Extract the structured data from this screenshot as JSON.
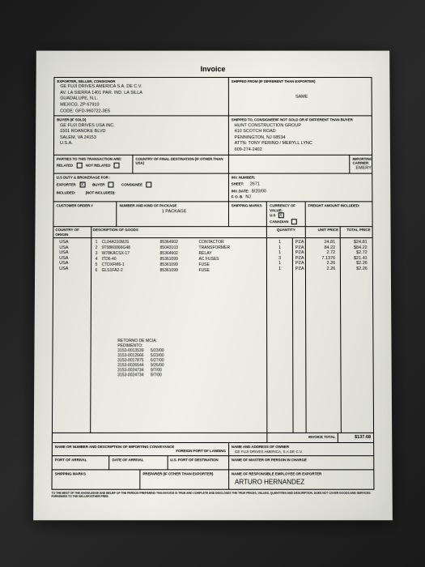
{
  "title": "Invoice",
  "labels": {
    "exporter": "EXPORTER, SELLER, CONSIGNOR",
    "shipped_from": "SHIPPED FROM (IF DIFFERENT THAN EXPORTER)",
    "buyer": "BUYER (IF SOLD)",
    "shipped_to": "SHIPPED TO, CONSIGNEE/IF NOT SOLD OR IF DIFFERENT THAN BUYER",
    "related": "RELATED",
    "not_related": "NOT RELATED",
    "parties": "PARTIES TO THIS TRANSACTION ARE:",
    "country_dest": "COUNTRY OF FINAL DESTINATION (IF OTHER THAN USA)",
    "importing_carrier": "IMPORTING CARRIER",
    "duty": "U.S DUTY & BROKERAGE FOR :",
    "exporter2": "EXPORTER",
    "buyer2": "BUYER",
    "consignee": "CONSIGNEE",
    "included": "INCLUDED:",
    "not_included": "(NOT INCLUDED):",
    "inv_number": "INV. NUMBER:",
    "sheet": "SHEET:",
    "inv_date": "INV. DATE:",
    "fob": "F. O. B.",
    "currency": "CURRENCY OF VALUE:",
    "us": "U.S",
    "canadian": "CANADIAN",
    "freight": "FREIGHT AMOUNT INCLUDED:",
    "cust_order": "CUSTOMER ORDER #",
    "num_kind": "NUMBER AND KIND OF PACKAGE",
    "shipping_marks": "SHIPPING MARKS",
    "country_origin": "COUNTRY OF ORIGIN",
    "desc_goods": "DESCRIPTION OF GOODS",
    "qty": "QUANTITY",
    "unit_price": "UNIT PRICE",
    "total_price": "TOTAL PRICE",
    "retorno": "RETORNO DE MCIA:",
    "pedimento": "PEDIMENTO:",
    "invoice_total": "INVOICE TOTAL",
    "name_import": "NAME OR NUMBER AND DESCRIPTION OF IMPORTING CONVEYANCE",
    "foreign_port": "FOREIGN PORT OF LANDING",
    "name_owner": "NAME AND ADDRESS OF OWNER",
    "port_arrival": "PORT OF ARRIVAL",
    "date_arrival": "DATE OF ARRIVAL",
    "us_port": "U.S. PORT OF DESTINATION",
    "master": "NAME OF MASTER OR PERSON IN CHARGE",
    "ship_marks2": "SHIPPING MARKS",
    "preparer": "PREPARER (IF OTHER THAN EXPORTER)",
    "responsible": "NAME OF RESPONSIBLE EMPLOYEE OR EXPORTER",
    "footer": "TO THE BEST OF THE KNOWLEDGE AND BELIEF OF THE PERSON PREPARING THIS INVOICE IS TRUE AND COMPLETE AND DISCLOSES THE TRUE PRICES, VALUES, QUANTITIES AND DESCRIPTION. DOES NOT COVER GOODS AND SERVICES FURNISHED TO THE SELLER EITHER FREE."
  },
  "exporter": {
    "l1": "GE FUJI DRIVES AMERICA S.A. DE C.V.",
    "l2": "AV. LA SIERRA 1401 PAR. IND. LA SILLA",
    "l3": "GUADALUPE, N.L.",
    "l4": "MEXICO, ZP 67910",
    "l5": "CODE: GFD-960722-3E5"
  },
  "shipped_from": "SAME",
  "buyer": {
    "l1": "GE FUJI DRIVES USA INC.",
    "l2": "1501 ROANOKE BLVD",
    "l3": "SALEM, VA 24153",
    "l4": "U.S.A."
  },
  "shipped_to": {
    "l1": "HUNT CONSTRUCTION GROUP",
    "l2": "410 SCOTCH ROAD",
    "l3": "PENNINGTON, NJ 08534",
    "l4": "ATTN: TONY PERINO / MERYLL LYNC",
    "l5": "609-274-2402"
  },
  "carrier": "EMERY",
  "sheet": "2671",
  "inv_date": "8/20/00",
  "fob": "NJ",
  "num_kind_val": "1 PACKAGE",
  "currency_x": "X",
  "exporter_x": "X",
  "items": [
    {
      "co": "USA",
      "n": "1",
      "pn": "CL04A310MJS",
      "hs": "85364902",
      "d": "CONTACTOR",
      "q": "1",
      "u": "PZA",
      "up": "24.81",
      "tp": "$24.81"
    },
    {
      "co": "USA",
      "n": "2",
      "pn": "9T58K0066G48",
      "hs": "85043103",
      "d": "TRANSFORMER",
      "q": "1",
      "u": "PZA",
      "up": "84.22",
      "tp": "$84.22"
    },
    {
      "co": "USA",
      "n": "3",
      "pn": "W78KACSX-17",
      "hs": "85364902",
      "d": "RELAY",
      "q": "1",
      "u": "PZA",
      "up": "2.72",
      "tp": "$2.72"
    },
    {
      "co": "USA",
      "n": "4",
      "pn": "ITD6-40",
      "hs": "85361099",
      "d": "AC FUSES",
      "q": "3",
      "u": "PZA",
      "up": "7.1376",
      "tp": "$21.41"
    },
    {
      "co": "USA",
      "n": "5",
      "pn": "CTDXFM6-1",
      "hs": "85361099",
      "d": "FUSE",
      "q": "1",
      "u": "PZA",
      "up": "2.26",
      "tp": "$2.26"
    },
    {
      "co": "USA",
      "n": "6",
      "pn": "GLS1FA2-2",
      "hs": "85361099",
      "d": "FUSE",
      "q": "1",
      "u": "PZA",
      "up": "2.26",
      "tp": "$2.26"
    }
  ],
  "pedimentos": [
    {
      "n": "3153-0013539",
      "d": "5/23/00"
    },
    {
      "n": "3153-0012666",
      "d": "5/23/00"
    },
    {
      "n": "3153-0017875",
      "d": "6/27/00"
    },
    {
      "n": "3153-0026544",
      "d": "9/26/00"
    },
    {
      "n": "3153-0024734",
      "d": "9/7/00"
    },
    {
      "n": "3153-0024734",
      "d": "9/7/00"
    }
  ],
  "invoice_total": "$137.68",
  "owner": "GE FUJI DRIVES AMERICA, S.A DE C.V.",
  "responsible": "ARTURO HERNANDEZ"
}
